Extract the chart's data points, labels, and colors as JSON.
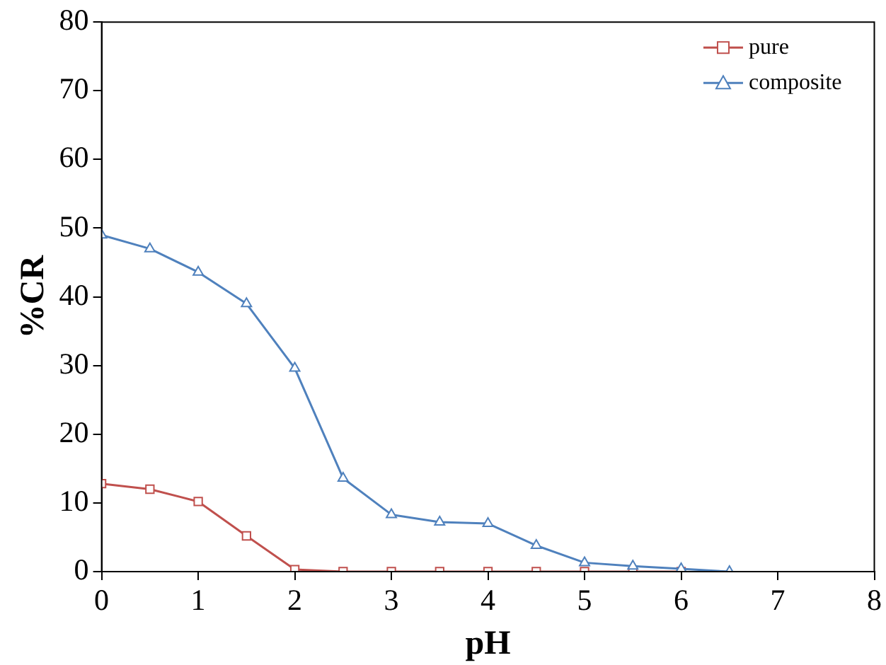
{
  "chart_data": {
    "type": "line",
    "xlabel": "pH",
    "ylabel": "%CR",
    "series": [
      {
        "name": "pure",
        "color": "#c0504d",
        "marker": "square",
        "x": [
          0,
          0.5,
          1,
          1.5,
          2,
          2.5,
          3,
          3.5,
          4,
          4.5,
          5,
          5.5,
          6
        ],
        "values": [
          12.8,
          12,
          10.2,
          5.2,
          0.3,
          0,
          0,
          0,
          0,
          0,
          0,
          0,
          0
        ]
      },
      {
        "name": "composite",
        "color": "#4f81bd",
        "marker": "triangle",
        "x": [
          0,
          0.5,
          1,
          1.5,
          2,
          2.5,
          3,
          3.5,
          4,
          4.5,
          5,
          5.5,
          6,
          6.5
        ],
        "values": [
          49,
          47,
          43.6,
          39,
          29.6,
          13.6,
          8.3,
          7.2,
          7,
          3.8,
          1.3,
          0.8,
          0.4,
          0
        ]
      }
    ],
    "xlim": [
      0,
      8
    ],
    "xticks": [
      0,
      1,
      2,
      3,
      4,
      5,
      6,
      7,
      8
    ],
    "ylim": [
      0,
      80
    ],
    "yticks": [
      0,
      10,
      20,
      30,
      40,
      50,
      60,
      70,
      80
    ],
    "grid": false,
    "legend": "top right",
    "line_style": "solid"
  }
}
